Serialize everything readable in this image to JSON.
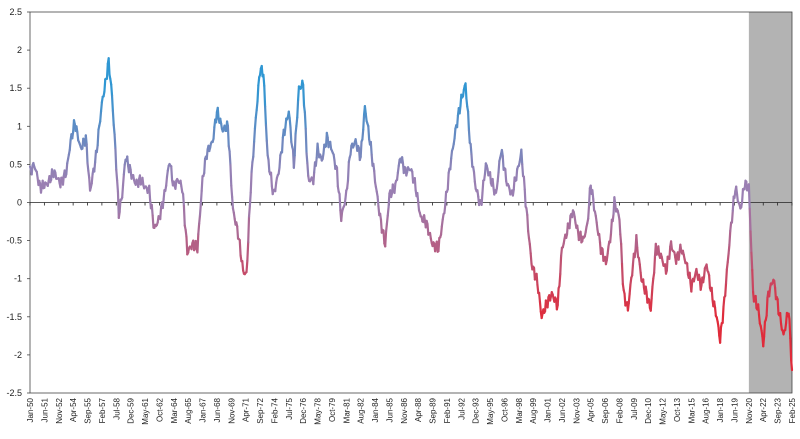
{
  "chart_data": {
    "type": "line",
    "title": "",
    "xlabel": "",
    "ylabel": "",
    "ylim": [
      -2.5,
      2.5
    ],
    "yticks": [
      2.5,
      2,
      1.5,
      1,
      0.5,
      0,
      -0.5,
      -1,
      -1.5,
      -2,
      -2.5
    ],
    "ytick_labels": [
      "2.5",
      "2",
      "1.5",
      "1",
      "0.5",
      "0",
      "-0.5",
      "-1",
      "-1.5",
      "-2",
      "-2.5"
    ],
    "xlim": [
      "Jan-50",
      "Feb-25"
    ],
    "x_tick_labels": [
      "Jan-50",
      "Jun-51",
      "Nov-52",
      "Apr-54",
      "Sep-55",
      "Feb-57",
      "Jul-58",
      "Dec-59",
      "May-61",
      "Oct-62",
      "Mar-64",
      "Aug-65",
      "Jan-67",
      "Jun-68",
      "Nov-69",
      "Apr-71",
      "Sep-72",
      "Feb-74",
      "Jul-75",
      "Dec-76",
      "May-78",
      "Oct-79",
      "Mar-81",
      "Aug-82",
      "Jan-84",
      "Jun-85",
      "Nov-86",
      "Apr-88",
      "Sep-89",
      "Feb-91",
      "Jul-92",
      "Dec-93",
      "May-95",
      "Oct-96",
      "Mar-98",
      "Aug-99",
      "Jan-01",
      "Jun-02",
      "Nov-03",
      "Apr-05",
      "Sep-06",
      "Feb-08",
      "Jul-09",
      "Dec-10",
      "May-12",
      "Oct-13",
      "Mar-15",
      "Aug-16",
      "Jan-18",
      "Jun-19",
      "Nov-20",
      "Apr-22",
      "Sep-23",
      "Feb-25"
    ],
    "shaded_region": {
      "from": "Nov-20",
      "to": "Feb-25",
      "color": "#b3b3b3"
    },
    "zero_line": true,
    "grid": false,
    "color_scale": {
      "positive": "#2f97d3",
      "neutral": "#9a7fb2",
      "negative": "#e02b3a"
    },
    "series": [
      {
        "points": [
          [
            "Jan-50",
            0.4
          ],
          [
            "Jun-50",
            0.5
          ],
          [
            "Jan-51",
            0.2
          ],
          [
            "Oct-51",
            0.25
          ],
          [
            "May-52",
            0.4
          ],
          [
            "Jan-53",
            0.25
          ],
          [
            "Aug-53",
            0.4
          ],
          [
            "Jan-54",
            0.8
          ],
          [
            "Jun-54",
            1.05
          ],
          [
            "Jan-55",
            0.7
          ],
          [
            "Jul-55",
            0.85
          ],
          [
            "Dec-55",
            0.15
          ],
          [
            "Jul-56",
            0.6
          ],
          [
            "Feb-57",
            1.3
          ],
          [
            "Jun-57",
            1.55
          ],
          [
            "Oct-57",
            1.85
          ],
          [
            "Feb-58",
            1.4
          ],
          [
            "Jul-58",
            0.5
          ],
          [
            "Oct-58",
            -0.15
          ],
          [
            "Feb-59",
            0.1
          ],
          [
            "Jun-59",
            0.6
          ],
          [
            "Dec-59",
            0.4
          ],
          [
            "Jun-60",
            0.25
          ],
          [
            "Dec-60",
            0.3
          ],
          [
            "May-61",
            0.2
          ],
          [
            "Oct-61",
            0.15
          ],
          [
            "Apr-62",
            -0.35
          ],
          [
            "Oct-62",
            -0.2
          ],
          [
            "Apr-63",
            0.1
          ],
          [
            "Oct-63",
            0.55
          ],
          [
            "Mar-64",
            0.2
          ],
          [
            "Aug-64",
            0.3
          ],
          [
            "Jan-65",
            0.2
          ],
          [
            "Jul-65",
            -0.65
          ],
          [
            "Jan-66",
            -0.55
          ],
          [
            "Jul-66",
            -0.6
          ],
          [
            "Jan-67",
            0.3
          ],
          [
            "Jun-67",
            0.65
          ],
          [
            "Jan-68",
            0.8
          ],
          [
            "Jun-68",
            1.2
          ],
          [
            "Jan-69",
            0.95
          ],
          [
            "Jul-69",
            1.0
          ],
          [
            "Jan-70",
            -0.1
          ],
          [
            "Jul-70",
            -0.4
          ],
          [
            "Jan-71",
            -0.9
          ],
          [
            "May-71",
            -0.95
          ],
          [
            "Oct-71",
            0.2
          ],
          [
            "Apr-72",
            1.1
          ],
          [
            "Sep-72",
            1.75
          ],
          [
            "Jan-73",
            1.7
          ],
          [
            "Jun-73",
            0.6
          ],
          [
            "Jan-74",
            0.1
          ],
          [
            "Jul-74",
            0.4
          ],
          [
            "Jan-75",
            0.9
          ],
          [
            "Jul-75",
            1.2
          ],
          [
            "Jan-76",
            0.5
          ],
          [
            "Jul-76",
            1.5
          ],
          [
            "Dec-76",
            1.55
          ],
          [
            "Jun-77",
            0.3
          ],
          [
            "Dec-77",
            0.3
          ],
          [
            "May-78",
            0.7
          ],
          [
            "Oct-78",
            0.55
          ],
          [
            "Apr-79",
            0.85
          ],
          [
            "Oct-79",
            0.7
          ],
          [
            "Apr-80",
            0.4
          ],
          [
            "Sep-80",
            -0.2
          ],
          [
            "Mar-81",
            0.1
          ],
          [
            "Aug-81",
            0.7
          ],
          [
            "Feb-82",
            0.8
          ],
          [
            "Aug-82",
            0.6
          ],
          [
            "Jan-83",
            1.25
          ],
          [
            "Jul-83",
            0.8
          ],
          [
            "Jan-84",
            0.3
          ],
          [
            "Jul-84",
            -0.2
          ],
          [
            "Jan-85",
            -0.55
          ],
          [
            "Jun-85",
            0.1
          ],
          [
            "Jan-86",
            0.2
          ],
          [
            "Jul-86",
            0.6
          ],
          [
            "Jan-87",
            0.4
          ],
          [
            "Jul-87",
            0.45
          ],
          [
            "Jan-88",
            0.2
          ],
          [
            "Jul-88",
            -0.2
          ],
          [
            "Jan-89",
            -0.25
          ],
          [
            "Sep-89",
            -0.55
          ],
          [
            "Apr-90",
            -0.6
          ],
          [
            "Nov-90",
            -0.1
          ],
          [
            "Jun-91",
            0.5
          ],
          [
            "Jan-92",
            1.0
          ],
          [
            "Jul-92",
            1.35
          ],
          [
            "Dec-92",
            1.55
          ],
          [
            "Jun-93",
            0.7
          ],
          [
            "Dec-93",
            0.2
          ],
          [
            "Jun-94",
            -0.05
          ],
          [
            "Dec-94",
            0.5
          ],
          [
            "Jun-95",
            0.3
          ],
          [
            "Dec-95",
            0.1
          ],
          [
            "Jun-96",
            0.7
          ],
          [
            "Jan-97",
            0.25
          ],
          [
            "Jul-97",
            0.1
          ],
          [
            "Jan-98",
            0.4
          ],
          [
            "Jun-98",
            0.65
          ],
          [
            "Dec-98",
            -0.1
          ],
          [
            "Jun-99",
            -0.8
          ],
          [
            "Jan-00",
            -1.05
          ],
          [
            "Jun-00",
            -1.5
          ],
          [
            "Jan-01",
            -1.3
          ],
          [
            "Jun-01",
            -1.2
          ],
          [
            "Jan-02",
            -1.35
          ],
          [
            "Jun-02",
            -0.6
          ],
          [
            "Jan-03",
            -0.35
          ],
          [
            "Jul-03",
            -0.1
          ],
          [
            "Jan-04",
            -0.4
          ],
          [
            "Jul-04",
            -0.5
          ],
          [
            "Dec-04",
            -0.3
          ],
          [
            "Apr-05",
            0.25
          ],
          [
            "Oct-05",
            -0.2
          ],
          [
            "Apr-06",
            -0.6
          ],
          [
            "Oct-06",
            -0.8
          ],
          [
            "Apr-07",
            -0.4
          ],
          [
            "Aug-07",
            0.0
          ],
          [
            "Feb-08",
            -0.2
          ],
          [
            "Jul-08",
            -1.2
          ],
          [
            "Dec-08",
            -1.4
          ],
          [
            "May-09",
            -0.9
          ],
          [
            "Oct-09",
            -0.5
          ],
          [
            "Apr-10",
            -1.0
          ],
          [
            "Oct-10",
            -1.2
          ],
          [
            "Mar-11",
            -1.4
          ],
          [
            "Sep-11",
            -0.6
          ],
          [
            "Mar-12",
            -0.7
          ],
          [
            "Sep-12",
            -0.9
          ],
          [
            "Mar-13",
            -0.55
          ],
          [
            "Sep-13",
            -0.75
          ],
          [
            "Mar-14",
            -0.6
          ],
          [
            "Sep-14",
            -0.8
          ],
          [
            "Mar-15",
            -1.1
          ],
          [
            "Sep-15",
            -0.9
          ],
          [
            "Mar-16",
            -1.1
          ],
          [
            "Sep-16",
            -0.8
          ],
          [
            "Mar-17",
            -1.2
          ],
          [
            "Sep-17",
            -1.5
          ],
          [
            "Jan-18",
            -1.8
          ],
          [
            "Jun-18",
            -1.3
          ],
          [
            "Jan-19",
            -0.4
          ],
          [
            "Jul-19",
            0.2
          ],
          [
            "Jan-20",
            -0.1
          ],
          [
            "Jun-20",
            0.25
          ],
          [
            "Nov-20",
            0.2
          ],
          [
            "Apr-21",
            -1.2
          ],
          [
            "Oct-21",
            -1.4
          ],
          [
            "Apr-22",
            -1.85
          ],
          [
            "Oct-22",
            -1.2
          ],
          [
            "Apr-23",
            -1.0
          ],
          [
            "Oct-23",
            -1.4
          ],
          [
            "Apr-24",
            -1.75
          ],
          [
            "Oct-24",
            -1.4
          ],
          [
            "Feb-25",
            -2.2
          ]
        ]
      }
    ]
  }
}
